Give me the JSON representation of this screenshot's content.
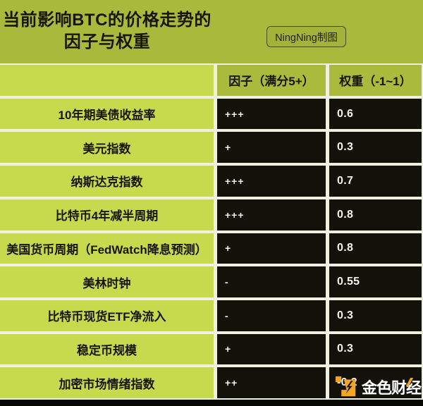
{
  "header": {
    "title_line1": "当前影响BTC的价格走势的",
    "title_line2": "因子与权重",
    "credit_badge": "NingNing制图"
  },
  "chart_data": {
    "type": "table",
    "title": "当前影响BTC的价格走势的因子与权重",
    "columns": [
      "",
      "因子（满分5+）",
      "权重（-1~1）"
    ],
    "rows": [
      {
        "factor": "10年期美债收益率",
        "score": "+++",
        "weight": "0.6"
      },
      {
        "factor": "美元指数",
        "score": "+",
        "weight": "0.3"
      },
      {
        "factor": "纳斯达克指数",
        "score": "+++",
        "weight": "0.7"
      },
      {
        "factor": "比特币4年减半周期",
        "score": "+++",
        "weight": "0.8"
      },
      {
        "factor": "美国货币周期（FedWatch降息预测）",
        "score": "+",
        "weight": "0.8"
      },
      {
        "factor": "美林时钟",
        "score": "-",
        "weight": "0.55"
      },
      {
        "factor": "比特币现货ETF净流入",
        "score": "-",
        "weight": "0.3"
      },
      {
        "factor": "稳定币规模",
        "score": "+",
        "weight": "0.3"
      },
      {
        "factor": "加密市场情绪指数",
        "score": "++",
        "weight": "-0.2"
      }
    ]
  },
  "watermark": {
    "brand": "金色财经"
  },
  "colors": {
    "page_bg": "#a9b93c",
    "bright_green": "#c7da4d",
    "header_green": "#aaba3d",
    "cell_dark": "#12120a",
    "separator": "#eef0e0",
    "ink": "#161605",
    "paper": "#f3f3ec",
    "orange": "#f5a524"
  }
}
